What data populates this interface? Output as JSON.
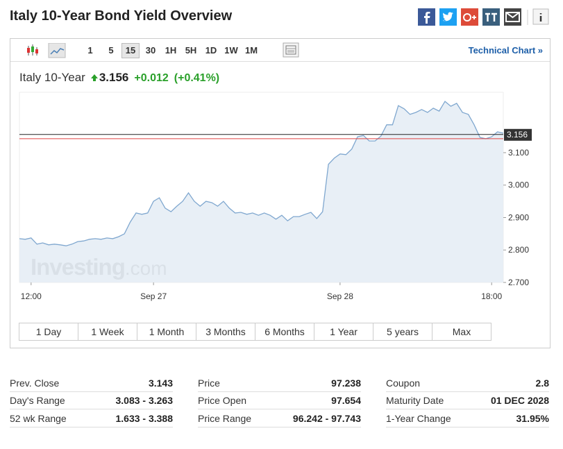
{
  "header": {
    "title": "Italy 10-Year Bond Yield Overview"
  },
  "toolbar": {
    "intervals": [
      "1",
      "5",
      "15",
      "30",
      "1H",
      "5H",
      "1D",
      "1W",
      "1M"
    ],
    "technical_chart": "Technical Chart »"
  },
  "quote": {
    "name": "Italy 10-Year",
    "price": 3.156,
    "change": "+0.012",
    "change_pct": "(+0.41%)"
  },
  "chart_data": {
    "type": "line",
    "color": "#7fa7cf",
    "fill": "#e4ecf4",
    "values": [
      2.835,
      2.833,
      2.837,
      2.818,
      2.822,
      2.816,
      2.818,
      2.816,
      2.813,
      2.818,
      2.826,
      2.828,
      2.833,
      2.835,
      2.833,
      2.837,
      2.835,
      2.841,
      2.85,
      2.886,
      2.914,
      2.91,
      2.914,
      2.95,
      2.961,
      2.929,
      2.918,
      2.935,
      2.95,
      2.976,
      2.95,
      2.935,
      2.95,
      2.946,
      2.935,
      2.95,
      2.929,
      2.914,
      2.916,
      2.91,
      2.914,
      2.907,
      2.914,
      2.907,
      2.895,
      2.907,
      2.89,
      2.903,
      2.903,
      2.91,
      2.916,
      2.897,
      2.918,
      3.064,
      3.083,
      3.096,
      3.094,
      3.111,
      3.149,
      3.153,
      3.136,
      3.136,
      3.151,
      3.186,
      3.186,
      3.245,
      3.235,
      3.218,
      3.224,
      3.233,
      3.224,
      3.237,
      3.228,
      3.258,
      3.243,
      3.252,
      3.224,
      3.218,
      3.186,
      3.147,
      3.143,
      3.149,
      3.164,
      3.16
    ],
    "xlim": [
      0,
      83
    ],
    "xticks": [
      {
        "value": 2,
        "label": "12:00"
      },
      {
        "value": 23,
        "label": "Sep 27"
      },
      {
        "value": 55,
        "label": "Sep 28"
      },
      {
        "value": 81,
        "label": "18:00"
      }
    ],
    "ylim": [
      2.7,
      3.286
    ],
    "yticks": [
      {
        "value": 2.7,
        "label": "2.700"
      },
      {
        "value": 2.8,
        "label": "2.800"
      },
      {
        "value": 2.9,
        "label": "2.900"
      },
      {
        "value": 3.0,
        "label": "3.000"
      },
      {
        "value": 3.1,
        "label": "3.100"
      }
    ],
    "last_line_color": "#222222",
    "prev_close_line_color": "#e04040",
    "watermark": {
      "brand": "Investing",
      "suffix": ".com"
    }
  },
  "ranges": [
    "1 Day",
    "1 Week",
    "1 Month",
    "3 Months",
    "6 Months",
    "1 Year",
    "5 years",
    "Max"
  ],
  "stats": [
    [
      {
        "label": "Prev. Close",
        "value": 3.143
      },
      {
        "label": "Day's Range",
        "value": "3.083 - 3.263"
      },
      {
        "label": "52 wk Range",
        "value": "1.633 - 3.388"
      }
    ],
    [
      {
        "label": "Price",
        "value": 97.238
      },
      {
        "label": "Price Open",
        "value": 97.654
      },
      {
        "label": "Price Range",
        "value": "96.242 - 97.743"
      }
    ],
    [
      {
        "label": "Coupon",
        "value": 2.8
      },
      {
        "label": "Maturity Date",
        "value": "01 DEC 2028"
      },
      {
        "label": "1-Year Change",
        "value": "31.95%"
      }
    ]
  ]
}
